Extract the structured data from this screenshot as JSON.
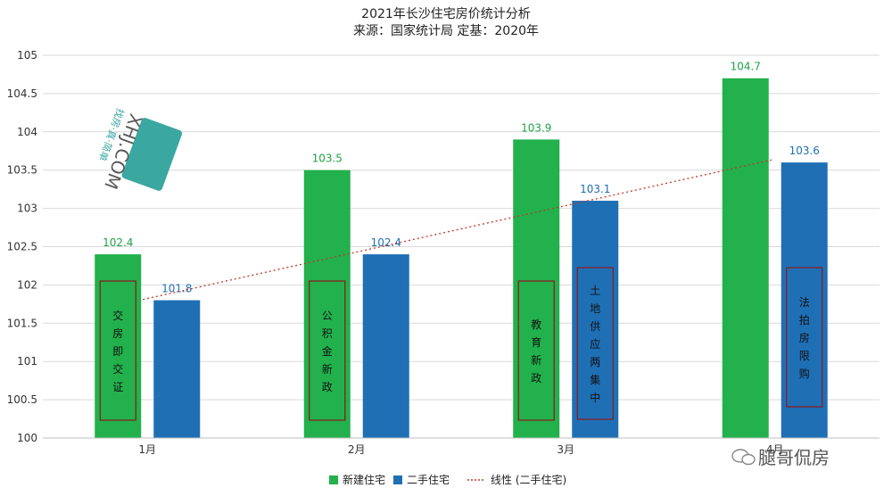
{
  "chart_data": {
    "type": "bar",
    "title": "2021年长沙住宅房价统计分析",
    "subtitle": "来源：国家统计局 定基：2020年",
    "categories": [
      "1月",
      "2月",
      "3月",
      "4月"
    ],
    "series": [
      {
        "name": "新建住宅",
        "values": [
          102.4,
          103.5,
          103.9,
          104.7
        ],
        "color": "#22b14c"
      },
      {
        "name": "二手住宅",
        "values": [
          101.8,
          102.4,
          103.1,
          103.6
        ],
        "color": "#1f6fb5"
      }
    ],
    "trendline": {
      "name": "线性 (二手住宅)",
      "color": "#c0392b"
    },
    "ylim": [
      100,
      105
    ],
    "yticks": [
      "100",
      "100.5",
      "101",
      "101.5",
      "102",
      "102.5",
      "103",
      "103.5",
      "104",
      "104.5",
      "105"
    ],
    "grid": true,
    "legend_position": "bottom",
    "annotations": [
      {
        "text": "交房即交证",
        "category": 0,
        "series": 0
      },
      {
        "text": "公积金新政",
        "category": 1,
        "series": 0
      },
      {
        "text": "教育新政",
        "category": 2,
        "series": 0
      },
      {
        "text": "土地供应两集中",
        "category": 2,
        "series": 1
      },
      {
        "text": "法拍房限购",
        "category": 3,
        "series": 1
      }
    ]
  },
  "watermarks": {
    "logo_text": "XHJ.COM",
    "logo_slogan": "找房·真·简单",
    "signature": "腿哥侃房",
    "signature_icon": "wechat-icon"
  }
}
